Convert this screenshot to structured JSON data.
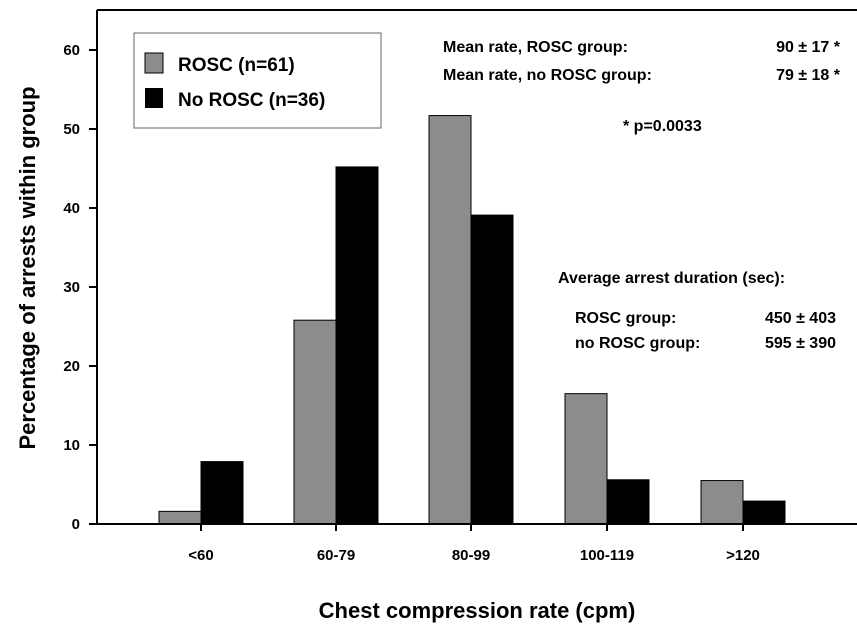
{
  "chart_data": {
    "type": "bar",
    "xlabel": "Chest compression rate (cpm)",
    "ylabel": "Percentage of arrests within group",
    "ylim": [
      0,
      65
    ],
    "yticks": [
      0,
      10,
      20,
      30,
      40,
      50,
      60
    ],
    "categories": [
      "<60",
      "60-79",
      "80-99",
      "100-119",
      ">120"
    ],
    "series": [
      {
        "name": "ROSC (n=61)",
        "color": "#8c8c8c",
        "values": [
          1.6,
          25.8,
          51.7,
          16.5,
          5.5
        ]
      },
      {
        "name": "No ROSC (n=36)",
        "color": "#000000",
        "values": [
          7.9,
          45.2,
          39.1,
          5.6,
          2.9
        ]
      }
    ],
    "grid": false,
    "legend_position": "top-left",
    "annotations": {
      "mean_rosc_label": "Mean rate, ROSC group:",
      "mean_rosc_value": "90 ± 17 *",
      "mean_norosc_label": "Mean rate, no ROSC group:",
      "mean_norosc_value": "79 ± 18 *",
      "pvalue": "* p=0.0033",
      "duration_title": "Average arrest duration (sec):",
      "duration_rosc_label": "ROSC group:",
      "duration_rosc_value": "450 ± 403",
      "duration_norosc_label": "no ROSC group:",
      "duration_norosc_value": "595 ± 390"
    }
  }
}
